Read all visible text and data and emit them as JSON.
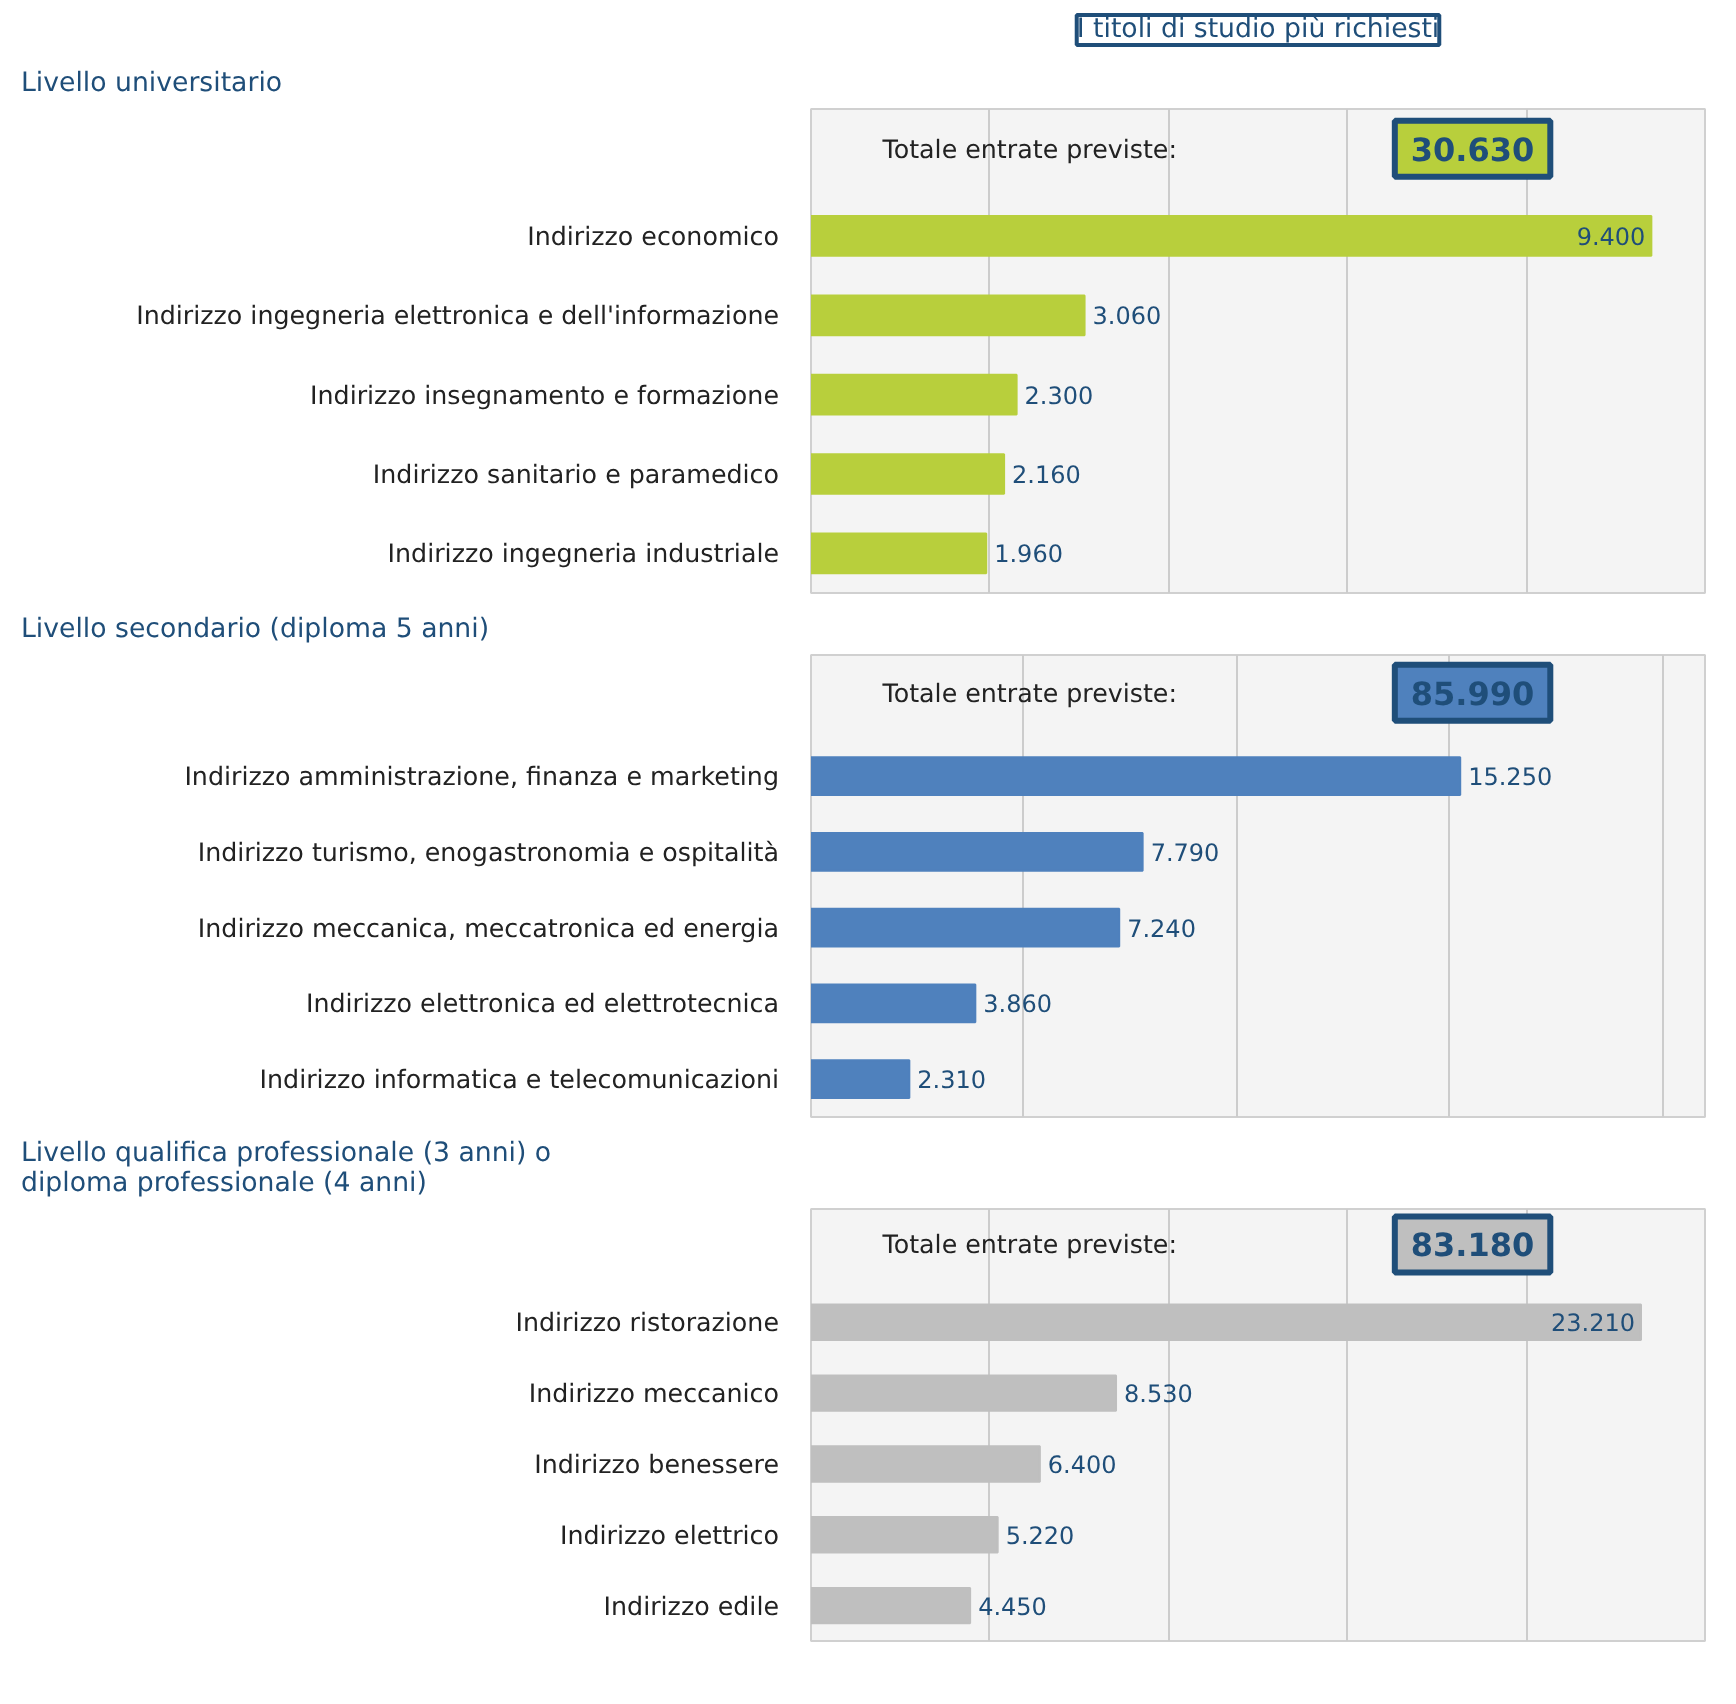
{
  "chart_data": [
    {
      "type": "bar",
      "orientation": "horizontal",
      "title": "I titoli di studio più richiesti",
      "subtitle": "Livello universitario",
      "annotations": [
        "Totale entrate previste:",
        "30.630"
      ],
      "categories": [
        "Indirizzo economico",
        "Indirizzo ingegneria elettronica e dell'informazione",
        "Indirizzo insegnamento e formazione",
        "Indirizzo sanitario e paramedico",
        "Indirizzo ingegneria industriale"
      ],
      "values": [
        9400,
        3060,
        2300,
        2160,
        1960
      ],
      "value_labels": [
        "9.400",
        "3.060",
        "2.300",
        "2.160",
        "1.960"
      ],
      "color": "#b8cf3c",
      "xlim": [
        0,
        10000
      ],
      "xticks": [
        {
          "value": 0,
          "label": null
        },
        {
          "value": 2000,
          "label": null
        },
        {
          "value": 4000,
          "label": null
        },
        {
          "value": 6000,
          "label": null
        },
        {
          "value": 8000,
          "label": null
        },
        {
          "value": 10000,
          "label": null
        }
      ],
      "grid": "x",
      "tick_labels": "y"
    },
    {
      "type": "bar",
      "orientation": "horizontal",
      "subtitle": "Livello secondario (diploma 5 anni)",
      "annotations": [
        "Totale entrate previste:",
        "85.990"
      ],
      "categories": [
        "Indirizzo amministrazione, finanza e marketing",
        "Indirizzo turismo, enogastronomia e ospitalità",
        "Indirizzo meccanica, meccatronica ed energia",
        "Indirizzo elettronica ed elettrotecnica",
        "Indirizzo informatica e telecomunicazioni"
      ],
      "values": [
        15250,
        7790,
        7240,
        3860,
        2310
      ],
      "value_labels": [
        "15.250",
        "7.790",
        "7.240",
        "3.860",
        "2.310"
      ],
      "color": "#4f81bd",
      "xlim": [
        0,
        21000
      ],
      "xticks": [
        {
          "value": 0,
          "label": null
        },
        {
          "value": 5000,
          "label": null
        },
        {
          "value": 10000,
          "label": null
        },
        {
          "value": 15000,
          "label": null
        },
        {
          "value": 20000,
          "label": null
        }
      ],
      "grid": "x",
      "tick_labels": "y"
    },
    {
      "type": "bar",
      "orientation": "horizontal",
      "subtitle": "Livello qualifica professionale (3 anni) o\ndiploma professionale (4 anni)",
      "annotations": [
        "Totale entrate previste:",
        "83.180"
      ],
      "categories": [
        "Indirizzo ristorazione",
        "Indirizzo meccanico",
        "Indirizzo benessere",
        "Indirizzo elettrico",
        "Indirizzo edile"
      ],
      "values": [
        23210,
        8530,
        6400,
        5220,
        4450
      ],
      "value_labels": [
        "23.210",
        "8.530",
        "6.400",
        "5.220",
        "4.450"
      ],
      "color": "#bfbfbf",
      "xlim": [
        0,
        25000
      ],
      "xticks": [
        {
          "value": 0,
          "label": null
        },
        {
          "value": 5000,
          "label": null
        },
        {
          "value": 10000,
          "label": null
        },
        {
          "value": 15000,
          "label": null
        },
        {
          "value": 20000,
          "label": null
        },
        {
          "value": 25000,
          "label": null
        }
      ],
      "grid": "x",
      "tick_labels": "y"
    }
  ]
}
